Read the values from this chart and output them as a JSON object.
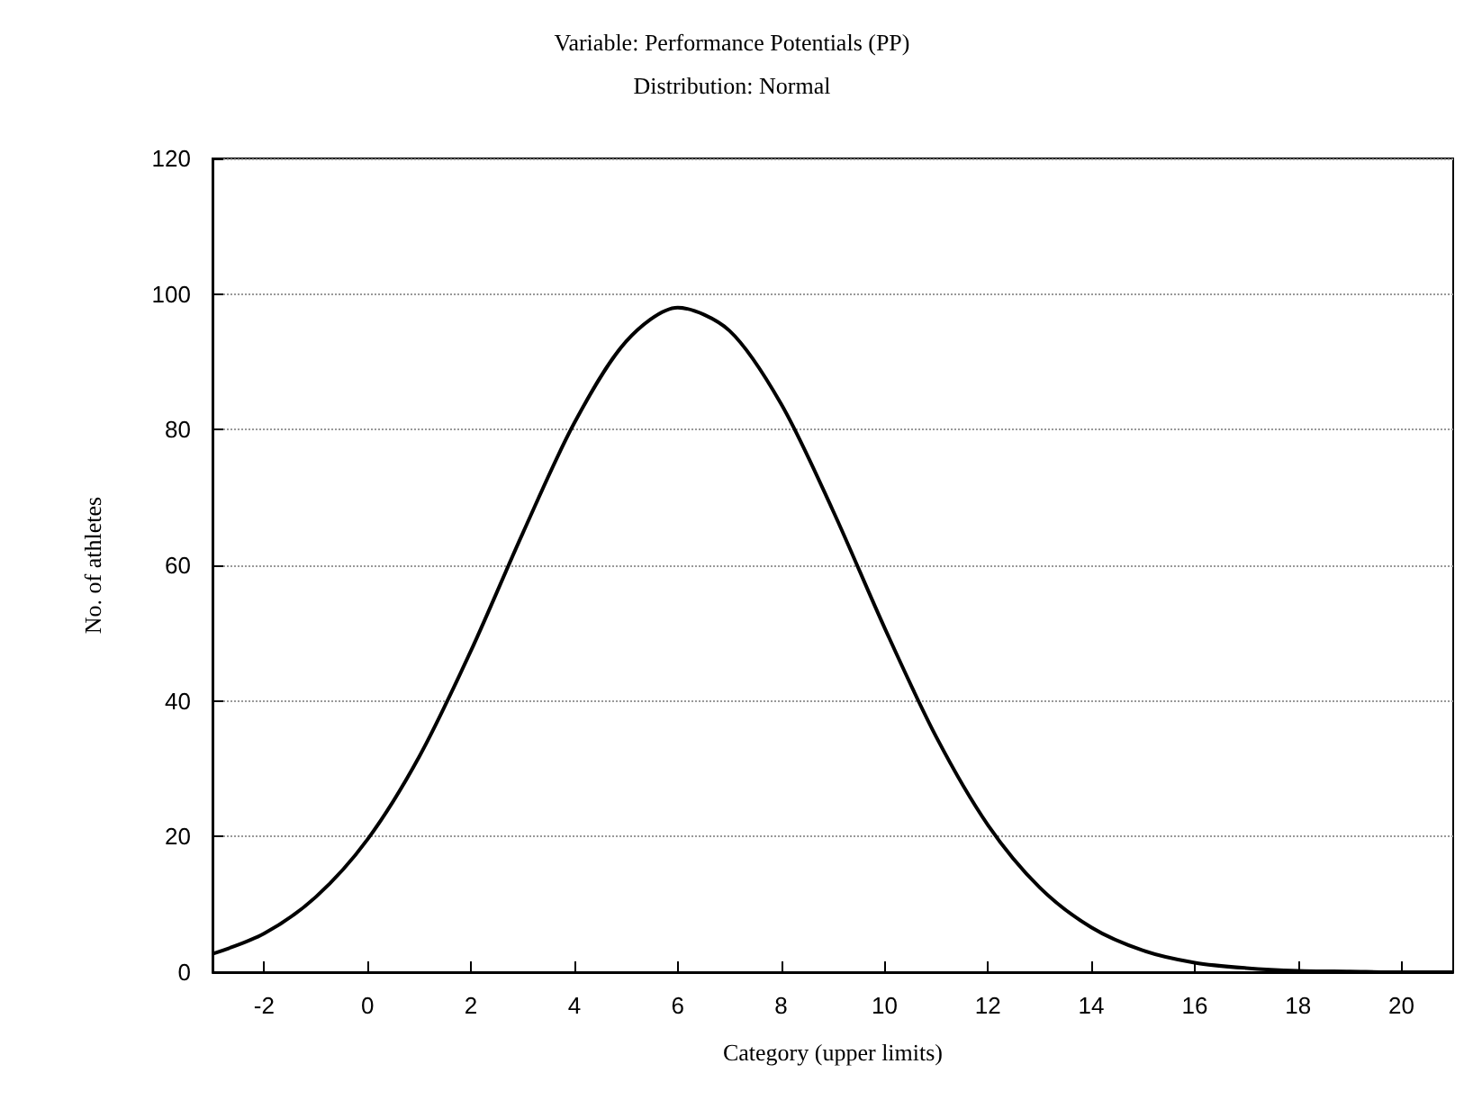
{
  "chart_data": {
    "type": "line",
    "title": "Variable: Performance Potentials (PP)",
    "subtitle": "Distribution: Normal",
    "xlabel": "Category (upper limits)",
    "ylabel": "No. of athletes",
    "x": [
      -3,
      -2,
      -1,
      0,
      1,
      2,
      3,
      4,
      5,
      6,
      7,
      8,
      9,
      10,
      11,
      12,
      13,
      14,
      15,
      16,
      17,
      18,
      19,
      20,
      21
    ],
    "series": [
      {
        "color": "#000000",
        "values": [
          2.7,
          5.7,
          11.1,
          19.6,
          31.8,
          47.4,
          64.7,
          81.0,
          93.0,
          98.0,
          94.6,
          83.8,
          68.1,
          50.8,
          34.7,
          21.7,
          12.5,
          6.6,
          3.2,
          1.4,
          0.6,
          0.2,
          0.1,
          0,
          0
        ]
      }
    ],
    "xlim": [
      -3,
      21
    ],
    "xticks": [
      -2,
      0,
      2,
      4,
      6,
      8,
      10,
      12,
      14,
      16,
      18,
      20
    ],
    "ylim": [
      0,
      120
    ],
    "yticks": [
      0,
      20,
      40,
      60,
      80,
      100,
      120
    ],
    "grid": "y",
    "marker": "none",
    "line_style": "solid"
  }
}
